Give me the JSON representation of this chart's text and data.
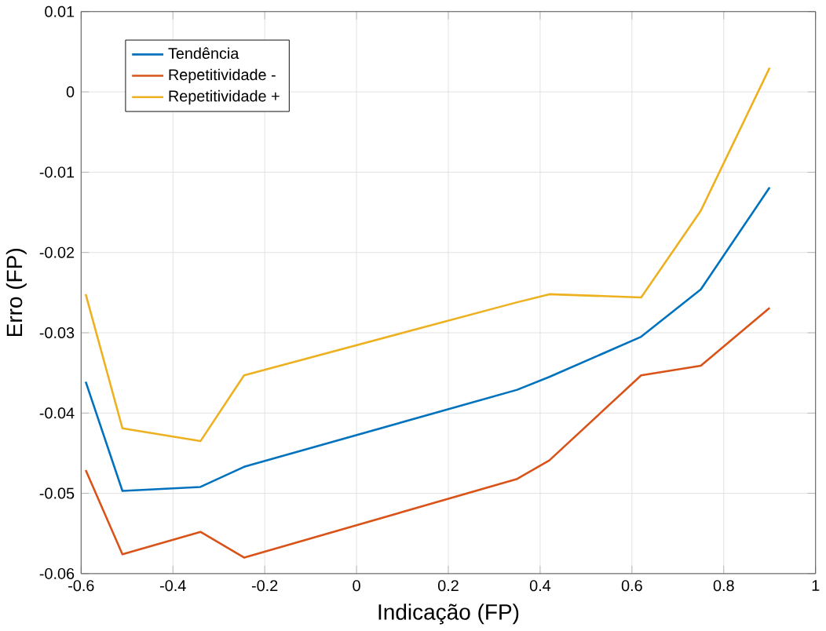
{
  "chart_data": {
    "type": "line",
    "xlabel": "Indicação (FP)",
    "ylabel": "Erro (FP)",
    "x": [
      -0.59,
      -0.51,
      -0.34,
      -0.245,
      0.35,
      0.42,
      0.62,
      0.75,
      0.9
    ],
    "series": [
      {
        "name": "Tendência",
        "color": "#0072bd",
        "values": [
          -0.0361,
          -0.0497,
          -0.0492,
          -0.0467,
          -0.0371,
          -0.0355,
          -0.0305,
          -0.0246,
          -0.0119
        ]
      },
      {
        "name": "Repetitividade -",
        "color": "#d95319",
        "values": [
          -0.0471,
          -0.0576,
          -0.0548,
          -0.058,
          -0.0482,
          -0.0459,
          -0.0353,
          -0.0341,
          -0.0269
        ]
      },
      {
        "name": "Repetitividade +",
        "color": "#edb120",
        "values": [
          -0.0252,
          -0.0419,
          -0.0435,
          -0.0353,
          -0.0262,
          -0.0252,
          -0.0256,
          -0.0148,
          0.003
        ]
      }
    ],
    "xlim": [
      -0.6,
      1
    ],
    "ylim": [
      -0.06,
      0.01
    ],
    "xticks": [
      -0.6,
      -0.4,
      -0.2,
      0,
      0.2,
      0.4,
      0.6,
      0.8,
      1
    ],
    "yticks": [
      -0.06,
      -0.05,
      -0.04,
      -0.03,
      -0.02,
      -0.01,
      0,
      0.01
    ],
    "grid": true,
    "legend": "top left",
    "marker": "none",
    "line_style": "solid"
  }
}
